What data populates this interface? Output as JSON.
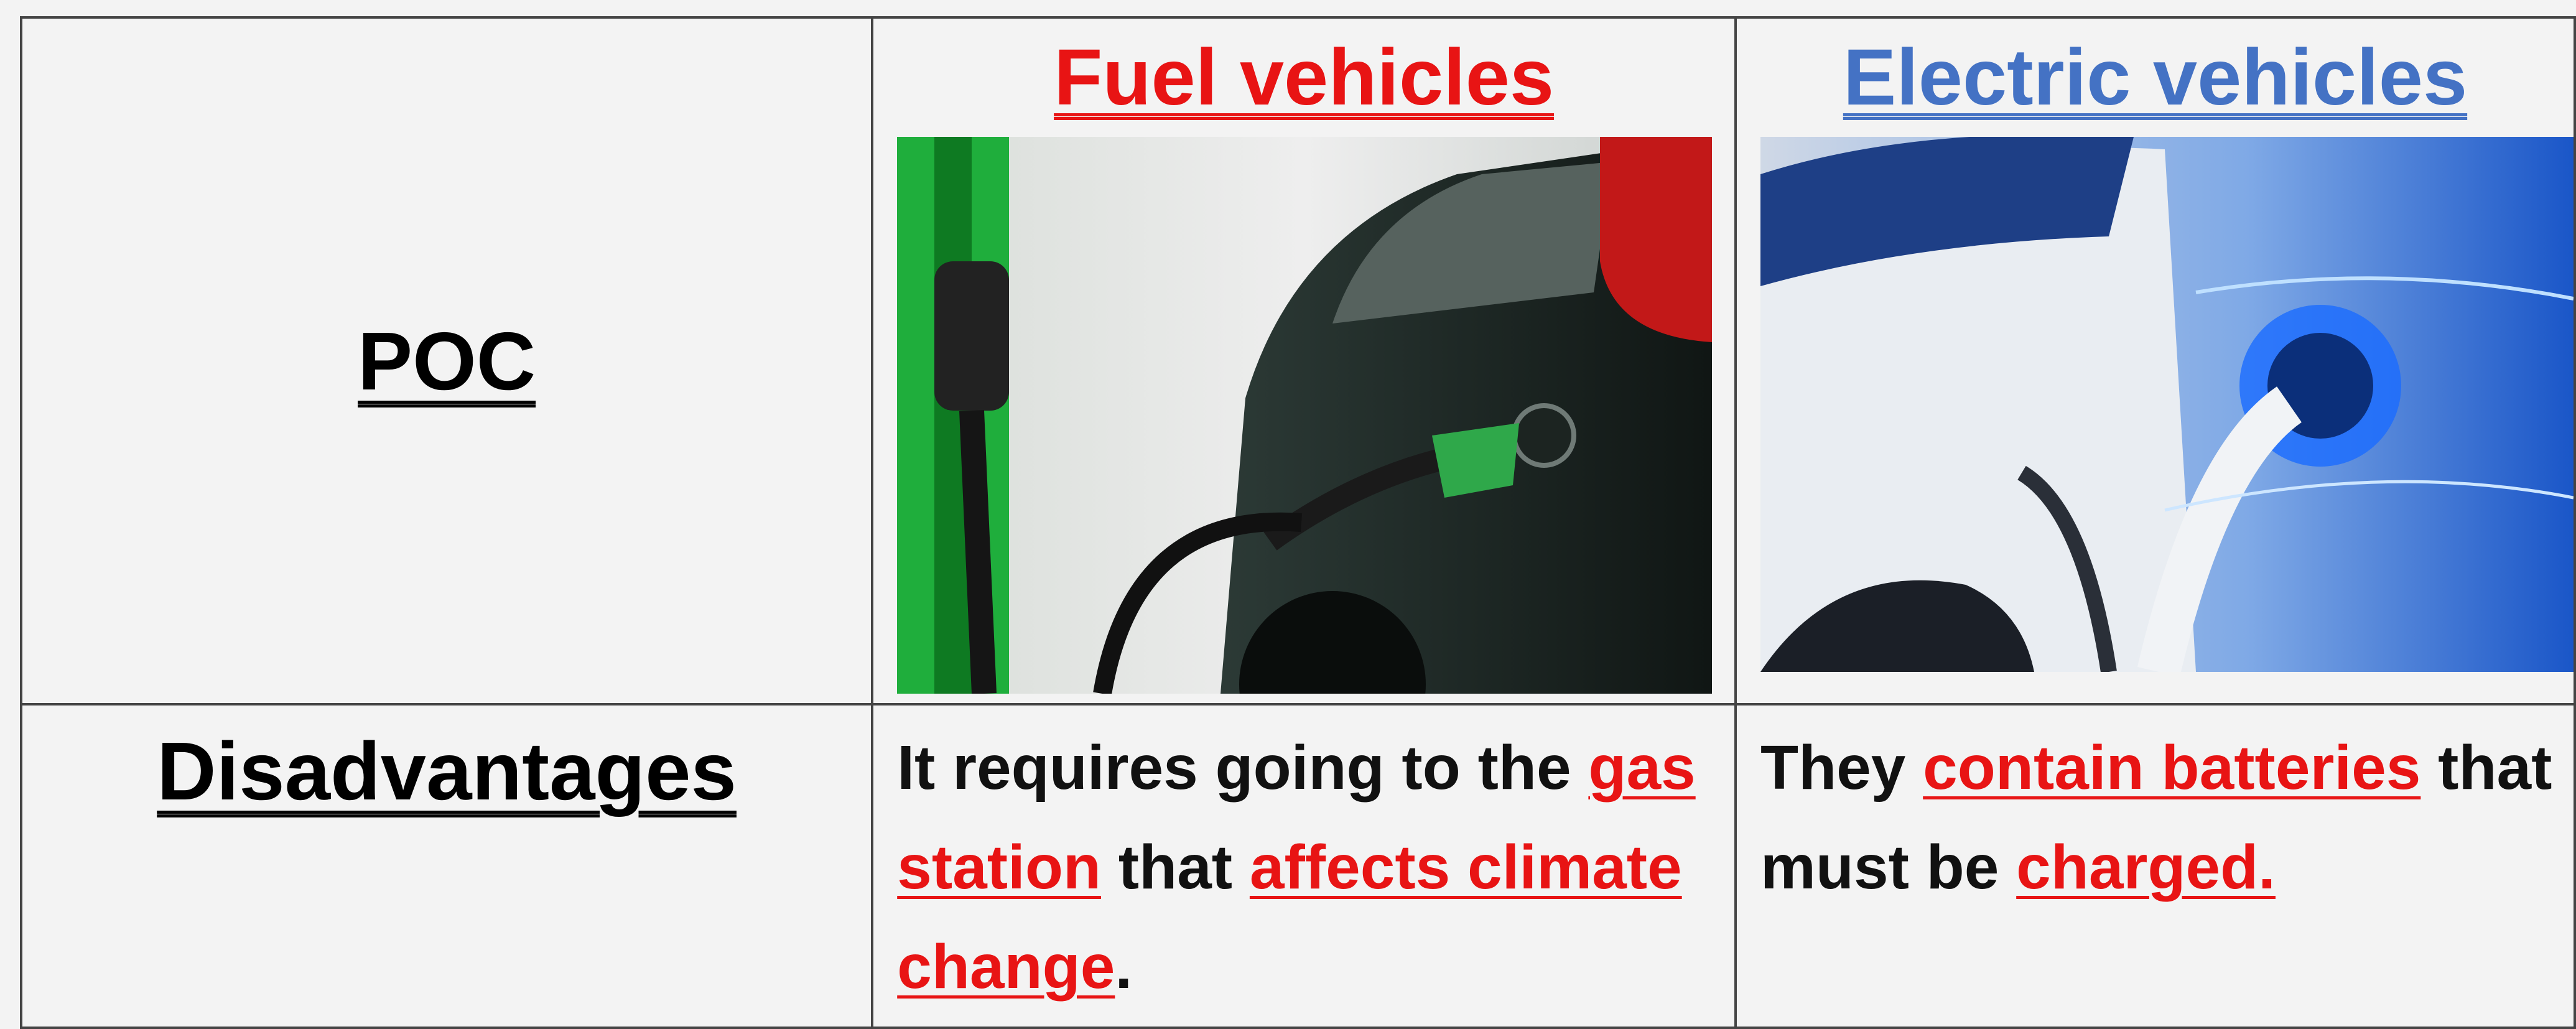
{
  "table": {
    "rows": [
      [
        {
          "text": "POC"
        },
        {
          "heading": "Fuel vehicles"
        },
        {
          "heading": "Electric vehicles"
        }
      ],
      [
        {
          "text": "Disadvantages"
        },
        {
          "segments": [
            "It requires going to the ",
            "gas station",
            " that ",
            "affects climate change",
            "."
          ]
        },
        {
          "segments": [
            "They ",
            "contain batteries",
            " that must be ",
            "charged."
          ]
        }
      ]
    ]
  }
}
